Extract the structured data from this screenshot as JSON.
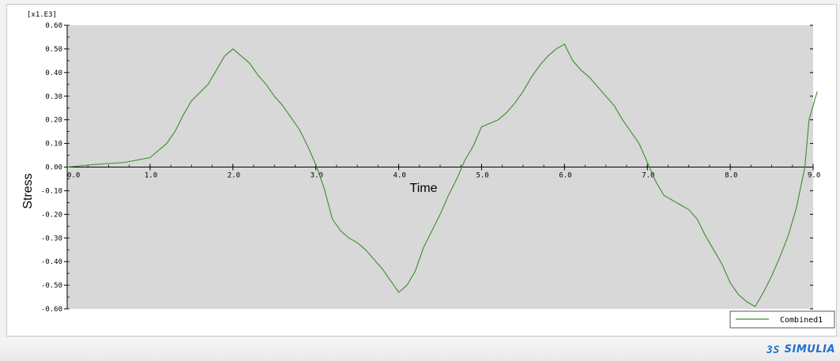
{
  "brand": {
    "name": "SIMULIA"
  },
  "colors": {
    "plot_bg": "#d8d8d8",
    "series": "#3a8f2a",
    "axis": "#000000",
    "brand": "#1f6fd0"
  },
  "chart_data": {
    "type": "line",
    "xlabel": "Time",
    "ylabel": "Stress",
    "y_scale_label": "[x1.E3]",
    "xlim": [
      0.0,
      9.0
    ],
    "ylim": [
      -0.6,
      0.6
    ],
    "x_ticks": [
      "0.0",
      "1.0",
      "2.0",
      "3.0",
      "4.0",
      "5.0",
      "6.0",
      "7.0",
      "8.0",
      "9.0"
    ],
    "y_ticks": [
      "0.60",
      "0.50",
      "0.40",
      "0.30",
      "0.20",
      "0.10",
      "0.00",
      "-0.10",
      "-0.20",
      "-0.30",
      "-0.40",
      "-0.50",
      "-0.60"
    ],
    "legend_position": "bottom-right",
    "grid": false,
    "series": [
      {
        "name": "Combined1",
        "color": "#3a8f2a",
        "x": [
          0.0,
          0.3,
          0.7,
          1.0,
          1.2,
          1.3,
          1.4,
          1.5,
          1.7,
          1.8,
          1.9,
          2.0,
          2.1,
          2.2,
          2.3,
          2.4,
          2.5,
          2.6,
          2.7,
          2.8,
          2.9,
          3.0,
          3.1,
          3.2,
          3.3,
          3.4,
          3.5,
          3.6,
          3.7,
          3.8,
          3.9,
          4.0,
          4.1,
          4.2,
          4.3,
          4.4,
          4.5,
          4.6,
          4.7,
          4.8,
          4.9,
          5.0,
          5.2,
          5.3,
          5.4,
          5.5,
          5.6,
          5.7,
          5.8,
          5.9,
          6.0,
          6.1,
          6.2,
          6.3,
          6.4,
          6.5,
          6.6,
          6.7,
          6.8,
          6.9,
          7.0,
          7.1,
          7.2,
          7.3,
          7.4,
          7.5,
          7.6,
          7.7,
          7.8,
          7.9,
          8.0,
          8.1,
          8.2,
          8.3,
          8.4,
          8.5,
          8.6,
          8.7,
          8.8,
          8.9,
          8.95,
          9.05
        ],
        "y": [
          0.0,
          0.01,
          0.02,
          0.04,
          0.1,
          0.15,
          0.22,
          0.28,
          0.35,
          0.41,
          0.47,
          0.5,
          0.47,
          0.44,
          0.39,
          0.35,
          0.3,
          0.26,
          0.21,
          0.16,
          0.09,
          0.01,
          -0.09,
          -0.22,
          -0.27,
          -0.3,
          -0.32,
          -0.35,
          -0.39,
          -0.43,
          -0.48,
          -0.53,
          -0.5,
          -0.44,
          -0.34,
          -0.27,
          -0.2,
          -0.12,
          -0.05,
          0.03,
          0.09,
          0.17,
          0.2,
          0.23,
          0.27,
          0.32,
          0.38,
          0.43,
          0.47,
          0.5,
          0.52,
          0.45,
          0.41,
          0.38,
          0.34,
          0.3,
          0.26,
          0.2,
          0.15,
          0.1,
          0.02,
          -0.06,
          -0.12,
          -0.14,
          -0.16,
          -0.18,
          -0.22,
          -0.29,
          -0.35,
          -0.41,
          -0.49,
          -0.54,
          -0.57,
          -0.59,
          -0.53,
          -0.46,
          -0.38,
          -0.29,
          -0.17,
          0.0,
          0.2,
          0.32
        ]
      }
    ]
  }
}
